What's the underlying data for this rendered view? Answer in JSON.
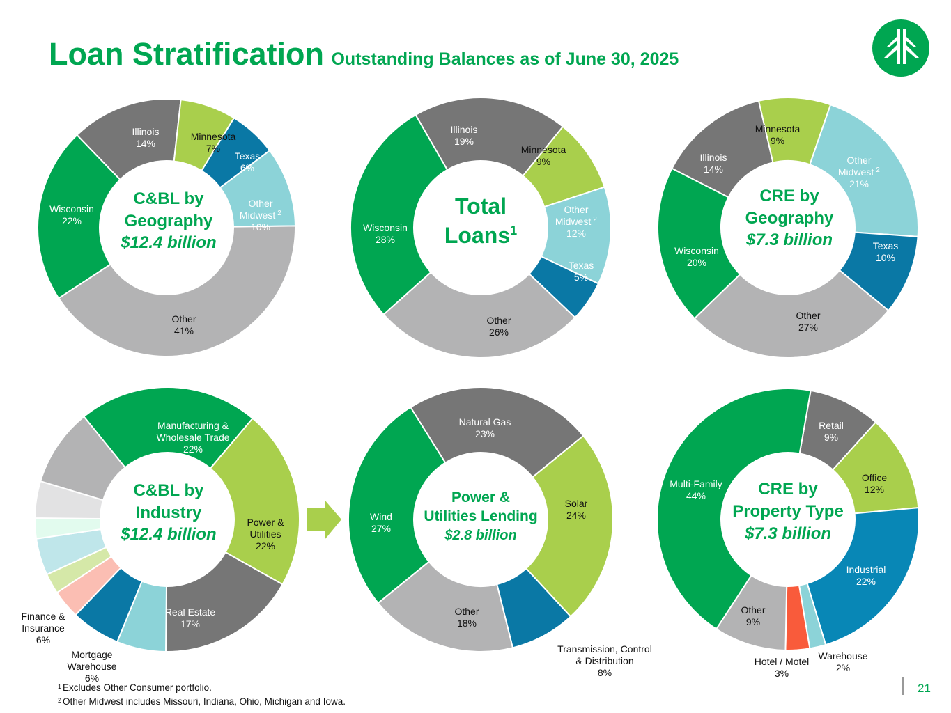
{
  "header": {
    "title": "Loan Stratification",
    "subtitle": "Outstanding Balances as of June 30, 2025"
  },
  "logo": {
    "icon": "evergreen-tree-logo-icon",
    "color": "#00a651"
  },
  "footnotes": {
    "n1_mark": "1",
    "n1": "Excludes Other Consumer portfolio.",
    "n2_mark": "2",
    "n2": "Other Midwest includes Missouri, Indiana, Ohio, Michigan and Iowa."
  },
  "page_number": "21",
  "colors": {
    "brand_green": "#00a651",
    "dark_gray": "#767676",
    "light_gray": "#b3b3b4",
    "lime": "#a9cf4c",
    "teal": "#8cd3d8",
    "blue": "#0a78a5",
    "industrial_blue": "#0887b6"
  },
  "chart_data": [
    {
      "type": "pie",
      "variant": "donut",
      "title": "C&BL by Geography",
      "title_lines": [
        "C&BL by",
        "Geography"
      ],
      "subtitle": "$12.4 billion",
      "slices": [
        {
          "label": "Illinois",
          "value": 14,
          "text": "14%",
          "color": "#767676",
          "label_color": "#ffffff"
        },
        {
          "label": "Minnesota",
          "value": 7,
          "text": "7%",
          "color": "#a9cf4c",
          "label_color": "#111111"
        },
        {
          "label": "Texas",
          "value": 6,
          "text": "6%",
          "color": "#0a78a5",
          "label_color": "#ffffff"
        },
        {
          "label": "Other Midwest",
          "value": 10,
          "text": "10%",
          "color": "#8cd3d8",
          "label_color": "#ffffff",
          "footnote": "2"
        },
        {
          "label": "Other",
          "value": 41,
          "text": "41%",
          "color": "#b3b3b4",
          "label_color": "#111111"
        },
        {
          "label": "Wisconsin",
          "value": 22,
          "text": "22%",
          "color": "#00a651",
          "label_color": "#ffffff"
        }
      ]
    },
    {
      "type": "pie",
      "variant": "donut",
      "title": "Total Loans",
      "title_lines": [
        "Total",
        "Loans"
      ],
      "title_footnote": "1",
      "subtitle": "",
      "slices": [
        {
          "label": "Illinois",
          "value": 19,
          "text": "19%",
          "color": "#767676",
          "label_color": "#ffffff"
        },
        {
          "label": "Minnesota",
          "value": 9,
          "text": "9%",
          "color": "#a9cf4c",
          "label_color": "#111111"
        },
        {
          "label": "Other Midwest",
          "value": 12,
          "text": "12%",
          "color": "#8cd3d8",
          "label_color": "#ffffff",
          "footnote": "2"
        },
        {
          "label": "Texas",
          "value": 5,
          "text": "5%",
          "color": "#0a78a5",
          "label_color": "#ffffff"
        },
        {
          "label": "Other",
          "value": 26,
          "text": "26%",
          "color": "#b3b3b4",
          "label_color": "#111111"
        },
        {
          "label": "Wisconsin",
          "value": 28,
          "text": "28%",
          "color": "#00a651",
          "label_color": "#ffffff"
        }
      ]
    },
    {
      "type": "pie",
      "variant": "donut",
      "title": "CRE by Geography",
      "title_lines": [
        "CRE by",
        "Geography"
      ],
      "subtitle": "$7.3 billion",
      "slices": [
        {
          "label": "Minnesota",
          "value": 9,
          "text": "9%",
          "color": "#a9cf4c",
          "label_color": "#111111"
        },
        {
          "label": "Other Midwest",
          "value": 21,
          "text": "21%",
          "color": "#8cd3d8",
          "label_color": "#ffffff",
          "footnote": "2"
        },
        {
          "label": "Texas",
          "value": 10,
          "text": "10%",
          "color": "#0a78a5",
          "label_color": "#ffffff"
        },
        {
          "label": "Other",
          "value": 27,
          "text": "27%",
          "color": "#b3b3b4",
          "label_color": "#111111"
        },
        {
          "label": "Wisconsin",
          "value": 20,
          "text": "20%",
          "color": "#00a651",
          "label_color": "#ffffff"
        },
        {
          "label": "Illinois",
          "value": 14,
          "text": "14%",
          "color": "#767676",
          "label_color": "#ffffff"
        }
      ]
    },
    {
      "type": "pie",
      "variant": "donut",
      "title": "C&BL by Industry",
      "title_lines": [
        "C&BL by",
        "Industry"
      ],
      "subtitle": "$12.4 billion",
      "slices": [
        {
          "label": "Manufacturing & Wholesale Trade",
          "value": 22,
          "text": "22%",
          "color": "#00a651",
          "label_color": "#ffffff"
        },
        {
          "label": "Power & Utilities",
          "value": 22,
          "text": "22%",
          "color": "#a9cf4c",
          "label_color": "#111111"
        },
        {
          "label": "Real Estate",
          "value": 17,
          "text": "17%",
          "color": "#767676",
          "label_color": "#ffffff"
        },
        {
          "label": "Mortgage Warehouse",
          "value": 6,
          "text": "6%",
          "color": "#8cd3d8",
          "label_color": "#111111"
        },
        {
          "label": "Finance & Insurance",
          "value": 6,
          "text": "6%",
          "color": "#0a78a5",
          "label_color": "#111111"
        },
        {
          "label": "",
          "value": 3.5,
          "text": "",
          "color": "#fbbeb3"
        },
        {
          "label": "",
          "value": 2.5,
          "text": "",
          "color": "#d5e8a8"
        },
        {
          "label": "",
          "value": 4.5,
          "text": "",
          "color": "#bfe6ea"
        },
        {
          "label": "",
          "value": 2.5,
          "text": "",
          "color": "#e2fbee"
        },
        {
          "label": "",
          "value": 4.5,
          "text": "",
          "color": "#e2e2e3"
        },
        {
          "label": "",
          "value": 9.5,
          "text": "",
          "color": "#b3b3b4"
        }
      ]
    },
    {
      "type": "pie",
      "variant": "donut",
      "title": "Power & Utilities Lending",
      "title_lines": [
        "Power &",
        "Utilities Lending"
      ],
      "subtitle": "$2.8 billion",
      "slices": [
        {
          "label": "Natural Gas",
          "value": 23,
          "text": "23%",
          "color": "#767676",
          "label_color": "#ffffff"
        },
        {
          "label": "Solar",
          "value": 24,
          "text": "24%",
          "color": "#a9cf4c",
          "label_color": "#111111"
        },
        {
          "label": "Transmission, Control & Distribution",
          "value": 8,
          "text": "8%",
          "color": "#0a78a5",
          "label_color": "#111111"
        },
        {
          "label": "Other",
          "value": 18,
          "text": "18%",
          "color": "#b3b3b4",
          "label_color": "#111111"
        },
        {
          "label": "Wind",
          "value": 27,
          "text": "27%",
          "color": "#00a651",
          "label_color": "#ffffff"
        }
      ]
    },
    {
      "type": "pie",
      "variant": "donut",
      "title": "CRE by Property Type",
      "title_lines": [
        "CRE by",
        "Property Type"
      ],
      "subtitle": "$7.3 billion",
      "slices": [
        {
          "label": "Retail",
          "value": 9,
          "text": "9%",
          "color": "#767676",
          "label_color": "#ffffff"
        },
        {
          "label": "Office",
          "value": 12,
          "text": "12%",
          "color": "#a9cf4c",
          "label_color": "#111111"
        },
        {
          "label": "Industrial",
          "value": 22,
          "text": "22%",
          "color": "#0887b6",
          "label_color": "#ffffff"
        },
        {
          "label": "Warehouse",
          "value": 2,
          "text": "2%",
          "color": "#8cd3d8",
          "label_color": "#111111"
        },
        {
          "label": "Hotel / Motel",
          "value": 3,
          "text": "3%",
          "color": "#f95b3b",
          "label_color": "#111111"
        },
        {
          "label": "Other",
          "value": 9,
          "text": "9%",
          "color": "#b3b3b4",
          "label_color": "#111111"
        },
        {
          "label": "Multi-Family",
          "value": 44,
          "text": "44%",
          "color": "#00a651",
          "label_color": "#ffffff"
        }
      ]
    }
  ]
}
